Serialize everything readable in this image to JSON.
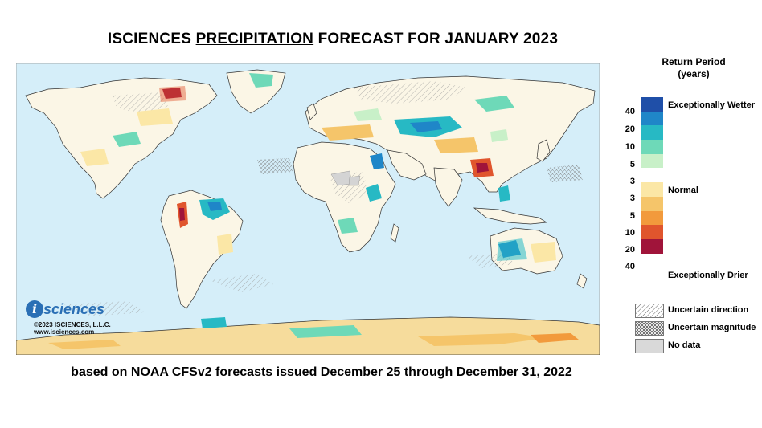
{
  "title": {
    "part1": "ISCIENCES ",
    "part2": "PRECIPITATION",
    "part3": " FORECAST FOR JANUARY 2023"
  },
  "subtitle": "based on NOAA CFSv2 forecasts issued December 25 through December 31, 2022",
  "legend": {
    "title_line1": "Return Period",
    "title_line2": "(years)",
    "wetter_ticks": [
      "40",
      "20",
      "10",
      "5",
      "3"
    ],
    "drier_ticks": [
      "3",
      "5",
      "10",
      "20",
      "40"
    ],
    "label_wetter": "Exceptionally Wetter",
    "label_normal": "Normal",
    "label_drier": "Exceptionally Drier",
    "colors": [
      "#1f4fa8",
      "#1f86c8",
      "#27b9c4",
      "#6ed9b8",
      "#c8f0c8",
      "#ffffff",
      "#fbe7a6",
      "#f5c56a",
      "#f29a3c",
      "#e0552d",
      "#a0143a"
    ],
    "uncertain_direction": "Uncertain direction",
    "uncertain_magnitude": "Uncertain magnitude",
    "no_data": "No data"
  },
  "logo": {
    "mark": "i",
    "name": "sciences",
    "copyright": "©2023 ISCIENCES, L.L.C.",
    "website": "www.isciences.com"
  }
}
